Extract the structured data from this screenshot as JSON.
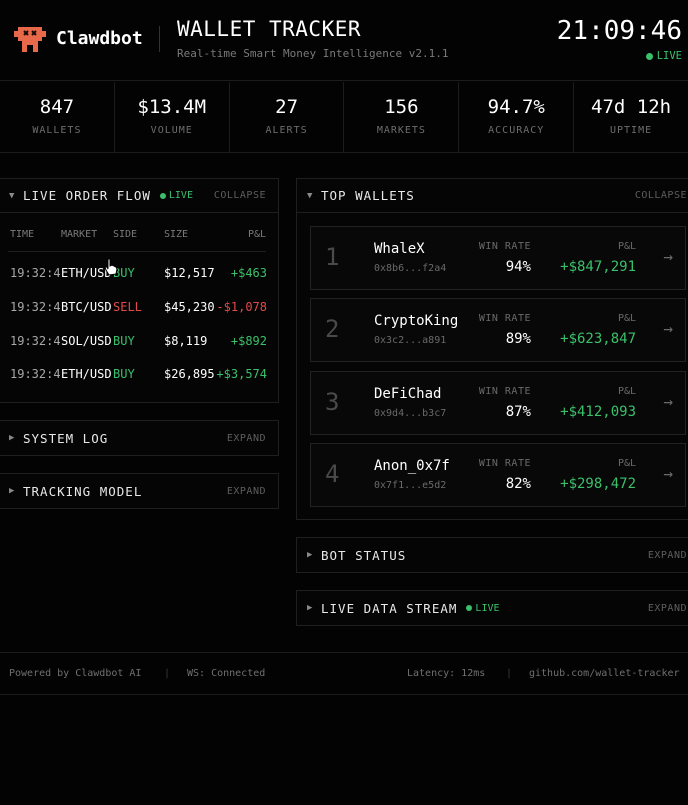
{
  "header": {
    "brand": "Clawdbot",
    "title": "WALLET TRACKER",
    "subtitle": "Real-time Smart Money Intelligence v2.1.1",
    "clock": "21:09:46",
    "live": "LIVE"
  },
  "stats": [
    {
      "value": "847",
      "label": "WALLETS"
    },
    {
      "value": "$13.4M",
      "label": "VOLUME"
    },
    {
      "value": "27",
      "label": "ALERTS"
    },
    {
      "value": "156",
      "label": "MARKETS"
    },
    {
      "value": "94.7%",
      "label": "ACCURACY"
    },
    {
      "value": "47d 12h",
      "label": "UPTIME"
    }
  ],
  "order_flow": {
    "title": "LIVE ORDER FLOW",
    "live": "LIVE",
    "action": "COLLAPSE",
    "columns": [
      "TIME",
      "MARKET",
      "SIDE",
      "SIZE",
      "P&L"
    ],
    "rows": [
      {
        "time": "19:32:4",
        "market": "ETH/USD",
        "side": "BUY",
        "size": "$12,517",
        "pnl": "+$463"
      },
      {
        "time": "19:32:4",
        "market": "BTC/USD",
        "side": "SELL",
        "size": "$45,230",
        "pnl": "-$1,078"
      },
      {
        "time": "19:32:4",
        "market": "SOL/USD",
        "side": "BUY",
        "size": "$8,119",
        "pnl": "+$892"
      },
      {
        "time": "19:32:4",
        "market": "ETH/USD",
        "side": "BUY",
        "size": "$26,895",
        "pnl": "+$3,574"
      }
    ]
  },
  "system_log": {
    "title": "SYSTEM LOG",
    "action": "EXPAND"
  },
  "tracking_model": {
    "title": "TRACKING MODEL",
    "action": "EXPAND"
  },
  "top_wallets": {
    "title": "TOP WALLETS",
    "action": "COLLAPSE",
    "winrate_label": "WIN RATE",
    "pnl_label": "P&L",
    "arrow": "→",
    "wallets": [
      {
        "rank": "1",
        "name": "WhaleX",
        "address": "0x8b6...f2a4",
        "win_rate": "94%",
        "pnl": "+$847,291"
      },
      {
        "rank": "2",
        "name": "CryptoKing",
        "address": "0x3c2...a891",
        "win_rate": "89%",
        "pnl": "+$623,847"
      },
      {
        "rank": "3",
        "name": "DeFiChad",
        "address": "0x9d4...b3c7",
        "win_rate": "87%",
        "pnl": "+$412,093"
      },
      {
        "rank": "4",
        "name": "Anon_0x7f",
        "address": "0x7f1...e5d2",
        "win_rate": "82%",
        "pnl": "+$298,472"
      }
    ]
  },
  "bot_status": {
    "title": "BOT STATUS",
    "action": "EXPAND"
  },
  "live_data_stream": {
    "title": "LIVE DATA STREAM",
    "live": "LIVE",
    "action": "EXPAND"
  },
  "footer": {
    "powered": "Powered by Clawdbot AI",
    "ws": "WS: Connected",
    "latency": "Latency: 12ms",
    "repo": "github.com/wallet-tracker",
    "separator": "|"
  },
  "icons": {
    "logo": "robot-claw-icon",
    "expand": "triangle-right-icon",
    "collapse": "triangle-down-icon",
    "live": "live-dot-icon"
  },
  "colors": {
    "background": "#030303",
    "accent_green": "#3ac06a",
    "sell_red": "#e04a4a",
    "logo_orange": "#e8684a"
  }
}
